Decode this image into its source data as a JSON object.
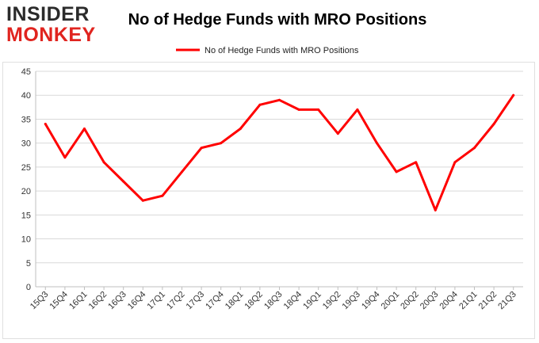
{
  "logo": {
    "line1": "INSIDER",
    "line2": "MONKEY"
  },
  "chart_data": {
    "type": "line",
    "title": "No of Hedge Funds with MRO Positions",
    "legend": {
      "position": "top-center"
    },
    "categories": [
      "15Q3",
      "15Q4",
      "16Q1",
      "16Q2",
      "16Q3",
      "16Q4",
      "17Q1",
      "17Q2",
      "17Q3",
      "17Q4",
      "18Q1",
      "18Q2",
      "18Q3",
      "18Q4",
      "19Q1",
      "19Q2",
      "19Q3",
      "19Q4",
      "20Q1",
      "20Q2",
      "20Q3",
      "20Q4",
      "21Q1",
      "21Q2",
      "21Q3"
    ],
    "series": [
      {
        "name": "No of Hedge Funds with MRO Positions",
        "color": "#ff0000",
        "values": [
          34,
          27,
          33,
          26,
          22,
          18,
          19,
          24,
          29,
          30,
          33,
          38,
          39,
          37,
          37,
          32,
          37,
          30,
          24,
          26,
          16,
          26,
          29,
          34,
          40
        ]
      }
    ],
    "ylim": [
      0,
      45
    ],
    "yticks": [
      0,
      5,
      10,
      15,
      20,
      25,
      30,
      35,
      40,
      45
    ],
    "grid": true,
    "xlabel": "",
    "ylabel": ""
  }
}
